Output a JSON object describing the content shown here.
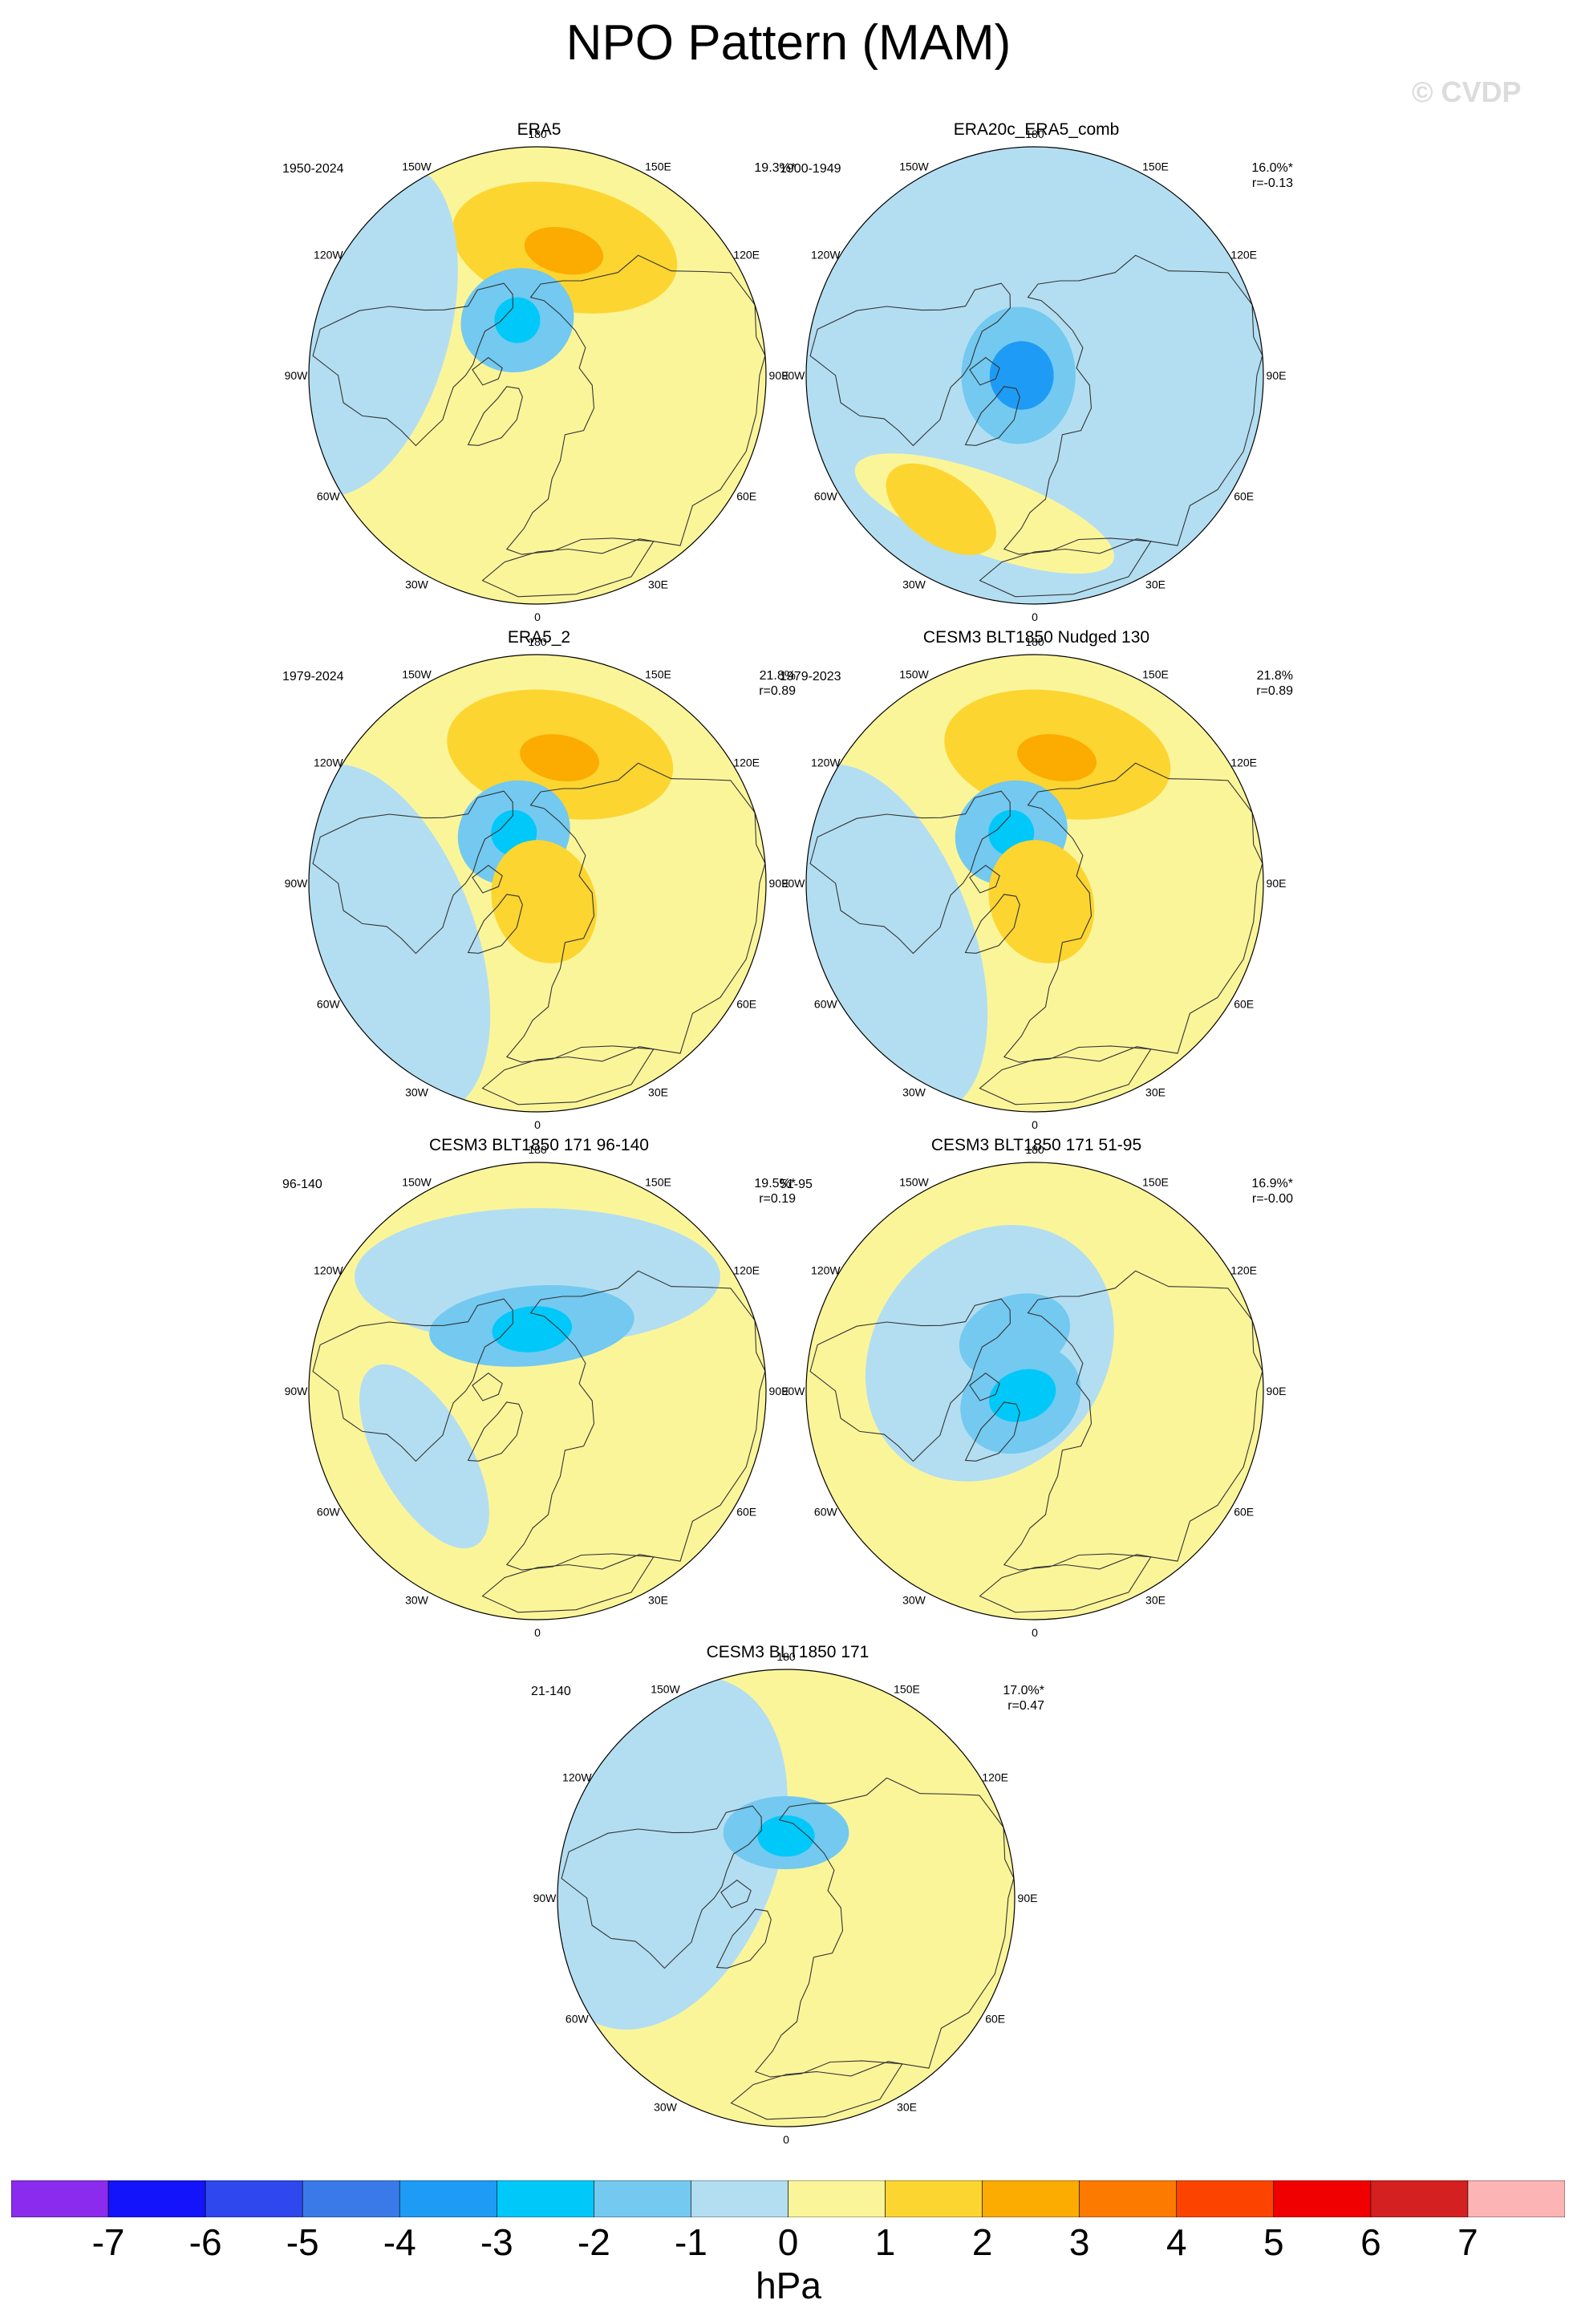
{
  "title": "NPO Pattern (MAM)",
  "watermark": "© CVDP",
  "colors": {
    "neg7": "#8b2bee",
    "neg6": "#1414fa",
    "neg5": "#2e48ee",
    "neg4": "#3a7ae8",
    "neg3": "#1e9bf5",
    "neg2": "#00c8f8",
    "neg1": "#73c9f0",
    "neg0": "#b3def2",
    "pos0": "#fbf59a",
    "pos1": "#fcd531",
    "pos2": "#fcab00",
    "pos3": "#fc7a00",
    "pos4": "#fc4400",
    "pos5": "#f00000",
    "pos6": "#d42020",
    "pos7": "#fdb4b4",
    "land": "#333333"
  },
  "lon_labels": [
    "180",
    "150E",
    "120E",
    "90E",
    "60E",
    "30E",
    "0",
    "30W",
    "60W",
    "90W",
    "120W",
    "150W"
  ],
  "panels": [
    {
      "name": "ERA5",
      "years": "1950-2024",
      "stat": "19.3%*",
      "background": "pos0",
      "features": [
        {
          "shape": "blob",
          "level": "pos1",
          "lon": 168,
          "lat": 50,
          "w": 1.0,
          "h": 0.55
        },
        {
          "shape": "blob",
          "level": "pos2",
          "lon": 168,
          "lat": 51,
          "w": 0.35,
          "h": 0.2
        },
        {
          "shape": "band",
          "level": "neg0",
          "lon": 255,
          "lat": 35,
          "w": 1.5,
          "h": 0.75
        },
        {
          "shape": "blob",
          "level": "neg1",
          "lon": 200,
          "lat": 72,
          "w": 0.5,
          "h": 0.45
        },
        {
          "shape": "blob",
          "level": "neg2",
          "lon": 200,
          "lat": 72,
          "w": 0.2,
          "h": 0.2
        }
      ]
    },
    {
      "name": "ERA20c_ERA5_comb",
      "years": "1900-1949",
      "stat": "16.0%*\nr=-0.13",
      "background": "neg0",
      "features": [
        {
          "shape": "band",
          "level": "pos0",
          "lon": 340,
          "lat": 45,
          "w": 1.2,
          "h": 0.35
        },
        {
          "shape": "blob",
          "level": "pos1",
          "lon": 325,
          "lat": 40,
          "w": 0.55,
          "h": 0.3
        },
        {
          "shape": "blob",
          "level": "neg1",
          "lon": 270,
          "lat": 85,
          "w": 0.6,
          "h": 0.5
        },
        {
          "shape": "blob",
          "level": "neg3",
          "lon": 270,
          "lat": 86,
          "w": 0.3,
          "h": 0.28
        }
      ]
    },
    {
      "name": "ERA5_2",
      "years": "1979-2024",
      "stat": "21.8%\nr=0.89",
      "background": "pos0",
      "features": [
        {
          "shape": "band",
          "level": "neg0",
          "lon": 290,
          "lat": 40,
          "w": 1.6,
          "h": 0.8
        },
        {
          "shape": "blob",
          "level": "pos1",
          "lon": 170,
          "lat": 50,
          "w": 1.0,
          "h": 0.55
        },
        {
          "shape": "blob",
          "level": "pos2",
          "lon": 170,
          "lat": 51,
          "w": 0.35,
          "h": 0.2
        },
        {
          "shape": "blob",
          "level": "neg1",
          "lon": 205,
          "lat": 73,
          "w": 0.5,
          "h": 0.45
        },
        {
          "shape": "blob",
          "level": "neg2",
          "lon": 205,
          "lat": 73,
          "w": 0.2,
          "h": 0.2
        },
        {
          "shape": "blob",
          "level": "pos1",
          "lon": 20,
          "lat": 84,
          "w": 0.45,
          "h": 0.55
        }
      ]
    },
    {
      "name": "CESM3 BLT1850 Nudged 130",
      "years": "1979-2023",
      "stat": "21.8%\nr=0.89",
      "background": "pos0",
      "features": [
        {
          "shape": "band",
          "level": "neg0",
          "lon": 290,
          "lat": 40,
          "w": 1.6,
          "h": 0.8
        },
        {
          "shape": "blob",
          "level": "pos1",
          "lon": 170,
          "lat": 50,
          "w": 1.0,
          "h": 0.55
        },
        {
          "shape": "blob",
          "level": "pos2",
          "lon": 170,
          "lat": 51,
          "w": 0.35,
          "h": 0.2
        },
        {
          "shape": "blob",
          "level": "neg1",
          "lon": 205,
          "lat": 73,
          "w": 0.5,
          "h": 0.45
        },
        {
          "shape": "blob",
          "level": "neg2",
          "lon": 205,
          "lat": 73,
          "w": 0.2,
          "h": 0.2
        },
        {
          "shape": "blob",
          "level": "pos1",
          "lon": 20,
          "lat": 84,
          "w": 0.45,
          "h": 0.55
        }
      ]
    },
    {
      "name": "CESM3 BLT1850 171 96-140",
      "years": "96-140",
      "stat": "19.5%*\nr=0.19",
      "background": "pos0",
      "features": [
        {
          "shape": "band",
          "level": "neg0",
          "lon": 180,
          "lat": 55,
          "w": 1.6,
          "h": 0.6
        },
        {
          "shape": "blob",
          "level": "neg0",
          "lon": 300,
          "lat": 50,
          "w": 0.9,
          "h": 0.4
        },
        {
          "shape": "blob",
          "level": "neg1",
          "lon": 185,
          "lat": 70,
          "w": 0.9,
          "h": 0.35
        },
        {
          "shape": "blob",
          "level": "neg2",
          "lon": 185,
          "lat": 71,
          "w": 0.35,
          "h": 0.2
        }
      ]
    },
    {
      "name": "CESM3 BLT1850 171 51-95",
      "years": "51-95",
      "stat": "16.9%*\nr=-0.00",
      "background": "pos0",
      "features": [
        {
          "shape": "blob",
          "level": "neg0",
          "lon": 230,
          "lat": 72,
          "w": 1.2,
          "h": 1.0
        },
        {
          "shape": "blob",
          "level": "neg1",
          "lon": 200,
          "lat": 72,
          "w": 0.5,
          "h": 0.35
        },
        {
          "shape": "blob",
          "level": "neg1",
          "lon": 300,
          "lat": 85,
          "w": 0.45,
          "h": 0.55
        },
        {
          "shape": "blob",
          "level": "neg2",
          "lon": 290,
          "lat": 86,
          "w": 0.22,
          "h": 0.3
        }
      ]
    },
    {
      "name": "CESM3 BLT1850 171",
      "years": "21-140",
      "stat": "17.0%*\nr=0.47",
      "background": "pos0",
      "features": [
        {
          "shape": "band",
          "level": "neg0",
          "lon": 250,
          "lat": 50,
          "w": 1.6,
          "h": 1.0
        },
        {
          "shape": "blob",
          "level": "neg1",
          "lon": 180,
          "lat": 70,
          "w": 0.55,
          "h": 0.32
        },
        {
          "shape": "blob",
          "level": "neg2",
          "lon": 180,
          "lat": 71,
          "w": 0.25,
          "h": 0.18
        }
      ]
    }
  ],
  "colorbar": {
    "levels": [
      "neg7",
      "neg6",
      "neg5",
      "neg4",
      "neg3",
      "neg2",
      "neg1",
      "neg0",
      "pos0",
      "pos1",
      "pos2",
      "pos3",
      "pos4",
      "pos5",
      "pos6",
      "pos7"
    ],
    "tick_labels": [
      "-7",
      "-6",
      "-5",
      "-4",
      "-3",
      "-2",
      "-1",
      "0",
      "1",
      "2",
      "3",
      "4",
      "5",
      "6",
      "7"
    ],
    "units": "hPa"
  }
}
